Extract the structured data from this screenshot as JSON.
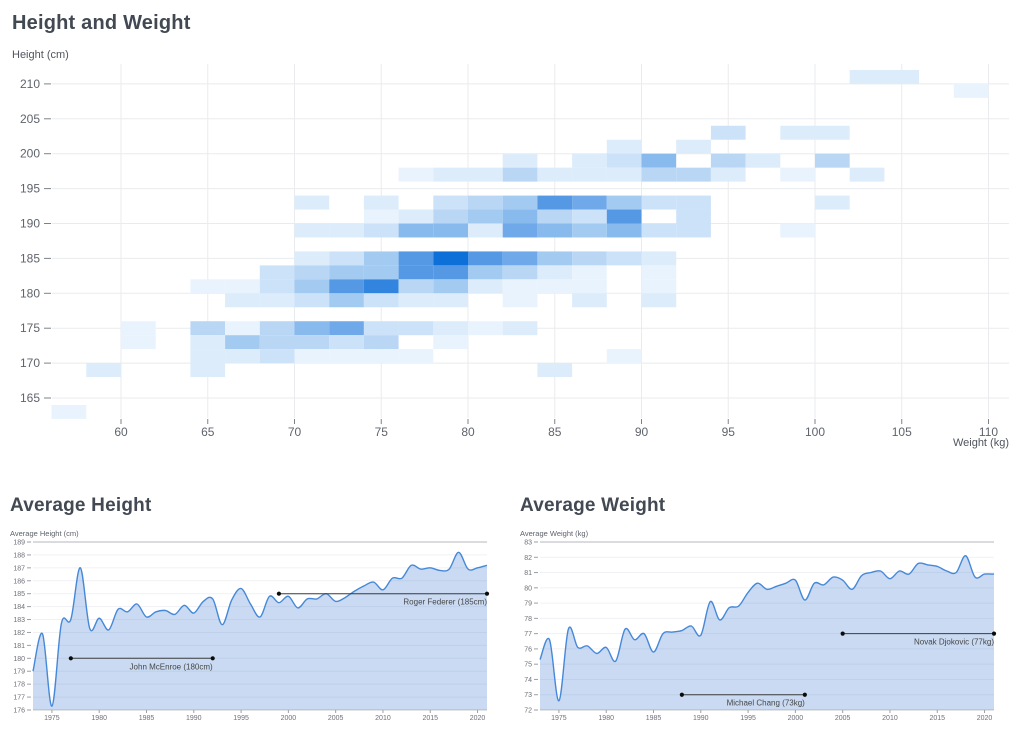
{
  "page": {
    "background": "#ffffff"
  },
  "chart_data": [
    {
      "type": "heatmap",
      "title": "Height and Weight",
      "xlabel": "Weight (kg)",
      "ylabel": "Height (cm)",
      "x_ticks": [
        60,
        65,
        70,
        75,
        80,
        85,
        90,
        95,
        100,
        105,
        110
      ],
      "y_ticks": [
        165,
        170,
        175,
        180,
        185,
        190,
        195,
        200,
        205,
        210
      ],
      "xlim": [
        56,
        111
      ],
      "ylim": [
        162,
        213
      ],
      "bin_size": {
        "weight_kg": 2,
        "height_cm": 2
      },
      "grid": true,
      "cells_format": "[weight_bin_center_kg, height_bin_center_cm, intensity_1_to_10]",
      "palette": [
        "#e9f3fd",
        "#dcecfb",
        "#cce2f8",
        "#b9d7f5",
        "#a3cbf1",
        "#89baee",
        "#6fa9e9",
        "#5598e4",
        "#3285de",
        "#0d6fd8"
      ],
      "cells": [
        [
          103,
          211,
          2
        ],
        [
          105,
          211,
          2
        ],
        [
          109,
          209,
          1
        ],
        [
          95,
          203,
          3
        ],
        [
          99,
          203,
          2
        ],
        [
          101,
          203,
          2
        ],
        [
          89,
          201,
          2
        ],
        [
          93,
          201,
          2
        ],
        [
          83,
          199,
          2
        ],
        [
          87,
          199,
          2
        ],
        [
          89,
          199,
          3
        ],
        [
          91,
          199,
          6
        ],
        [
          95,
          199,
          4
        ],
        [
          97,
          199,
          2
        ],
        [
          101,
          199,
          4
        ],
        [
          77,
          197,
          1
        ],
        [
          79,
          197,
          2
        ],
        [
          81,
          197,
          2
        ],
        [
          83,
          197,
          4
        ],
        [
          85,
          197,
          2
        ],
        [
          87,
          197,
          2
        ],
        [
          89,
          197,
          2
        ],
        [
          91,
          197,
          4
        ],
        [
          93,
          197,
          4
        ],
        [
          95,
          197,
          2
        ],
        [
          99,
          197,
          1
        ],
        [
          103,
          197,
          2
        ],
        [
          71,
          193,
          2
        ],
        [
          75,
          193,
          2
        ],
        [
          79,
          193,
          3
        ],
        [
          81,
          193,
          4
        ],
        [
          83,
          193,
          5
        ],
        [
          85,
          193,
          8
        ],
        [
          87,
          193,
          7
        ],
        [
          89,
          193,
          5
        ],
        [
          91,
          193,
          3
        ],
        [
          93,
          193,
          3
        ],
        [
          101,
          193,
          2
        ],
        [
          75,
          191,
          1
        ],
        [
          77,
          191,
          2
        ],
        [
          79,
          191,
          4
        ],
        [
          81,
          191,
          5
        ],
        [
          83,
          191,
          6
        ],
        [
          85,
          191,
          4
        ],
        [
          87,
          191,
          3
        ],
        [
          89,
          191,
          8
        ],
        [
          93,
          191,
          3
        ],
        [
          71,
          189,
          2
        ],
        [
          73,
          189,
          2
        ],
        [
          75,
          189,
          3
        ],
        [
          77,
          189,
          6
        ],
        [
          79,
          189,
          6
        ],
        [
          81,
          189,
          2
        ],
        [
          83,
          189,
          7
        ],
        [
          85,
          189,
          6
        ],
        [
          87,
          189,
          5
        ],
        [
          89,
          189,
          6
        ],
        [
          91,
          189,
          3
        ],
        [
          93,
          189,
          3
        ],
        [
          99,
          189,
          1
        ],
        [
          71,
          185,
          2
        ],
        [
          73,
          185,
          3
        ],
        [
          75,
          185,
          5
        ],
        [
          77,
          185,
          8
        ],
        [
          79,
          185,
          10
        ],
        [
          81,
          185,
          8
        ],
        [
          83,
          185,
          7
        ],
        [
          85,
          185,
          5
        ],
        [
          87,
          185,
          4
        ],
        [
          89,
          185,
          3
        ],
        [
          91,
          185,
          2
        ],
        [
          69,
          183,
          3
        ],
        [
          71,
          183,
          4
        ],
        [
          73,
          183,
          5
        ],
        [
          75,
          183,
          5
        ],
        [
          77,
          183,
          8
        ],
        [
          79,
          183,
          8
        ],
        [
          81,
          183,
          5
        ],
        [
          83,
          183,
          4
        ],
        [
          85,
          183,
          2
        ],
        [
          87,
          183,
          1
        ],
        [
          91,
          183,
          1
        ],
        [
          65,
          181,
          1
        ],
        [
          67,
          181,
          1
        ],
        [
          69,
          181,
          3
        ],
        [
          71,
          181,
          5
        ],
        [
          73,
          181,
          8
        ],
        [
          75,
          181,
          9
        ],
        [
          77,
          181,
          4
        ],
        [
          79,
          181,
          5
        ],
        [
          81,
          181,
          2
        ],
        [
          83,
          181,
          1
        ],
        [
          85,
          181,
          1
        ],
        [
          87,
          181,
          1
        ],
        [
          91,
          181,
          1
        ],
        [
          67,
          179,
          2
        ],
        [
          69,
          179,
          2
        ],
        [
          71,
          179,
          3
        ],
        [
          73,
          179,
          5
        ],
        [
          75,
          179,
          3
        ],
        [
          77,
          179,
          2
        ],
        [
          79,
          179,
          2
        ],
        [
          83,
          179,
          1
        ],
        [
          87,
          179,
          2
        ],
        [
          91,
          179,
          2
        ],
        [
          61,
          175,
          1
        ],
        [
          65,
          175,
          4
        ],
        [
          67,
          175,
          1
        ],
        [
          69,
          175,
          4
        ],
        [
          71,
          175,
          6
        ],
        [
          73,
          175,
          7
        ],
        [
          75,
          175,
          3
        ],
        [
          77,
          175,
          3
        ],
        [
          79,
          175,
          2
        ],
        [
          81,
          175,
          1
        ],
        [
          83,
          175,
          2
        ],
        [
          61,
          173,
          1
        ],
        [
          65,
          173,
          2
        ],
        [
          67,
          173,
          5
        ],
        [
          69,
          173,
          4
        ],
        [
          71,
          173,
          4
        ],
        [
          73,
          173,
          3
        ],
        [
          75,
          173,
          4
        ],
        [
          79,
          173,
          1
        ],
        [
          65,
          171,
          2
        ],
        [
          67,
          171,
          2
        ],
        [
          69,
          171,
          3
        ],
        [
          71,
          171,
          1
        ],
        [
          73,
          171,
          1
        ],
        [
          75,
          171,
          1
        ],
        [
          77,
          171,
          1
        ],
        [
          89,
          171,
          1
        ],
        [
          59,
          169,
          2
        ],
        [
          65,
          169,
          2
        ],
        [
          85,
          169,
          2
        ],
        [
          57,
          163,
          1
        ]
      ]
    },
    {
      "type": "area",
      "title": "Average Height",
      "ylabel": "Average Height (cm)",
      "x_start": 1973,
      "x_end": 2021,
      "x_ticks": [
        1975,
        1980,
        1985,
        1990,
        1995,
        2000,
        2005,
        2010,
        2015,
        2020
      ],
      "ylim": [
        176,
        189
      ],
      "y_tick_step": 1,
      "line_color": "#4688d8",
      "fill_color": "rgba(77,134,212,0.30)",
      "values": [
        179.0,
        181.9,
        176.3,
        182.7,
        183.0,
        187.0,
        182.3,
        183.1,
        182.2,
        183.8,
        183.6,
        184.2,
        183.2,
        183.6,
        183.7,
        183.4,
        184.1,
        183.5,
        184.4,
        184.6,
        182.6,
        184.5,
        185.4,
        184.2,
        183.2,
        184.8,
        184.3,
        184.8,
        183.9,
        184.6,
        184.6,
        185.0,
        184.4,
        184.7,
        185.2,
        185.6,
        185.9,
        185.3,
        186.2,
        186.2,
        187.2,
        186.9,
        187.0,
        186.8,
        186.9,
        188.2,
        186.9,
        187.0,
        187.2
      ],
      "annotations": [
        {
          "label": "John McEnroe (180cm)",
          "value": 180,
          "from": 1977,
          "to": 1992
        },
        {
          "label": "Roger Federer (185cm)",
          "value": 185,
          "from": 1999,
          "to": 2021
        }
      ]
    },
    {
      "type": "area",
      "title": "Average Weight",
      "ylabel": "Average Weight (kg)",
      "x_start": 1973,
      "x_end": 2021,
      "x_ticks": [
        1975,
        1980,
        1985,
        1990,
        1995,
        2000,
        2005,
        2010,
        2015,
        2020
      ],
      "ylim": [
        72,
        83
      ],
      "y_tick_step": 1,
      "line_color": "#4688d8",
      "fill_color": "rgba(77,134,212,0.30)",
      "values": [
        75.3,
        76.6,
        72.6,
        77.3,
        76.1,
        76.2,
        75.7,
        76.1,
        75.2,
        77.3,
        76.6,
        77.0,
        75.8,
        77.0,
        77.1,
        77.2,
        77.5,
        76.9,
        79.1,
        77.9,
        78.7,
        78.8,
        79.7,
        80.3,
        79.9,
        80.1,
        80.3,
        80.5,
        79.2,
        80.3,
        80.2,
        80.7,
        80.5,
        79.9,
        80.8,
        81.0,
        81.1,
        80.6,
        81.1,
        80.9,
        81.6,
        81.5,
        81.4,
        81.1,
        81.0,
        82.1,
        80.7,
        80.9,
        80.9
      ],
      "annotations": [
        {
          "label": "Michael Chang (73kg)",
          "value": 73,
          "from": 1988,
          "to": 2001
        },
        {
          "label": "Novak Djokovic (77kg)",
          "value": 77,
          "from": 2005,
          "to": 2021
        }
      ]
    }
  ]
}
